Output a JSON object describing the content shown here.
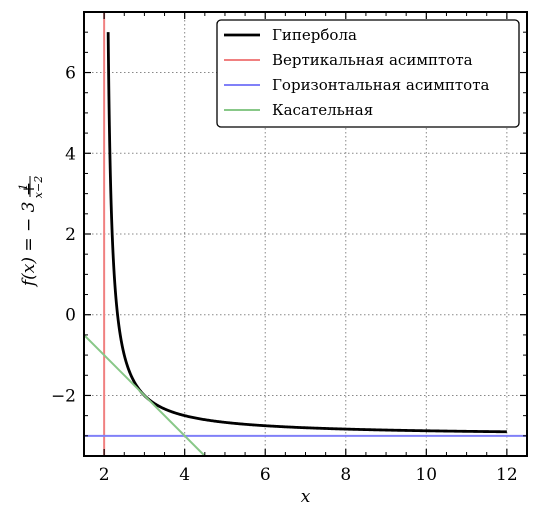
{
  "chart_data": {
    "type": "line",
    "title": "",
    "xlabel": "x",
    "ylabel": "f(x) = −3 + 1/(x−2)",
    "xlim": [
      1.5,
      12.5
    ],
    "ylim": [
      -3.5,
      7.5
    ],
    "grid": true,
    "legend_position": "top-right",
    "x_ticks": [
      2,
      4,
      6,
      8,
      10,
      12
    ],
    "y_ticks": [
      -2,
      0,
      2,
      4,
      6
    ],
    "x_tick_labels": [
      "2",
      "4",
      "6",
      "8",
      "10",
      "12"
    ],
    "y_tick_labels": [
      "−2",
      "0",
      "2",
      "4",
      "6"
    ],
    "series": [
      {
        "name": "Гипербола",
        "color": "#000000",
        "kind": "function",
        "formula": "-3 + 1/(x-2)",
        "x_range": [
          2.1,
          12
        ],
        "x": [
          2.1,
          2.2,
          2.3,
          2.5,
          3,
          4,
          6,
          8,
          10,
          12
        ],
        "y": [
          7,
          2,
          0.33,
          -1,
          -2,
          -2.5,
          -2.75,
          -2.83,
          -2.88,
          -2.9
        ]
      },
      {
        "name": "Вертикальная асимптота",
        "color": "#f08080",
        "kind": "vline",
        "x": 2
      },
      {
        "name": "Горизонтальная асимптота",
        "color": "#8080f8",
        "kind": "hline",
        "y": -3
      },
      {
        "name": "Касательная",
        "color": "#88c888",
        "kind": "line",
        "x": [
          1.5,
          4.5
        ],
        "y": [
          -0.5,
          -3.5
        ]
      }
    ]
  }
}
